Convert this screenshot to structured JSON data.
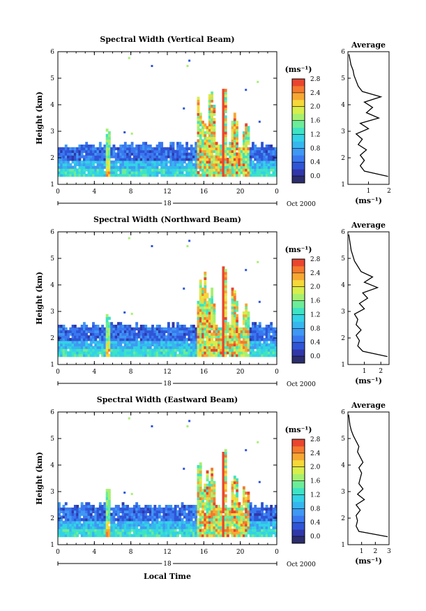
{
  "chart_data": [
    {
      "type": "heatmap",
      "title": "Spectral Width (Vertical Beam)",
      "ylabel": "Height (km)",
      "xlabel": "",
      "xlim": [
        0,
        24
      ],
      "ylim": [
        1,
        6
      ],
      "xticks": [
        "0",
        "4",
        "8",
        "12",
        "16",
        "20",
        "0"
      ],
      "yticks": [
        "1",
        "2",
        "3",
        "4",
        "5",
        "6"
      ],
      "day_label": "18",
      "month_label": "Oct 2000",
      "colorbar": {
        "unit": "(ms⁻¹)",
        "ticks": [
          "0.0",
          "0.4",
          "0.8",
          "1.2",
          "1.6",
          "2.0",
          "2.4",
          "2.8"
        ],
        "min": 0,
        "max": 3.0
      },
      "profile": {
        "title": "Average",
        "xlabel": "(ms⁻¹)",
        "xlim": [
          0,
          2
        ],
        "xticks": [
          "1",
          "2"
        ],
        "height_km": [
          1.3,
          1.5,
          1.7,
          1.9,
          2.1,
          2.3,
          2.5,
          2.7,
          2.9,
          3.1,
          3.3,
          3.5,
          3.7,
          3.9,
          4.1,
          4.3,
          4.5,
          4.7,
          4.9,
          5.1,
          5.3,
          5.5,
          5.7,
          5.9
        ],
        "width_ms": [
          1.95,
          0.8,
          0.6,
          0.8,
          0.6,
          0.9,
          0.5,
          0.7,
          0.4,
          1.0,
          0.6,
          1.5,
          0.9,
          1.2,
          0.8,
          1.6,
          0.7,
          0.5,
          0.4,
          0.3,
          0.25,
          0.15,
          0.1,
          0.05
        ]
      }
    },
    {
      "type": "heatmap",
      "title": "Spectral Width (Northward Beam)",
      "ylabel": "Height (km)",
      "xlabel": "",
      "xlim": [
        0,
        24
      ],
      "ylim": [
        1,
        6
      ],
      "xticks": [
        "0",
        "4",
        "8",
        "12",
        "16",
        "20",
        "0"
      ],
      "yticks": [
        "1",
        "2",
        "3",
        "4",
        "5",
        "6"
      ],
      "day_label": "18",
      "month_label": "Oct 2000",
      "colorbar": {
        "unit": "(ms⁻¹)",
        "ticks": [
          "0.0",
          "0.4",
          "0.8",
          "1.2",
          "1.6",
          "2.0",
          "2.4",
          "2.8"
        ],
        "min": 0,
        "max": 3.0
      },
      "profile": {
        "title": "Average",
        "xlabel": "(ms⁻¹)",
        "xlim": [
          0,
          2.5
        ],
        "xticks": [
          "1",
          "2"
        ],
        "height_km": [
          1.3,
          1.5,
          1.7,
          1.9,
          2.1,
          2.3,
          2.5,
          2.7,
          2.9,
          3.1,
          3.3,
          3.5,
          3.7,
          3.9,
          4.1,
          4.3,
          4.5,
          4.7,
          4.9,
          5.1,
          5.3,
          5.5,
          5.7,
          5.9
        ],
        "width_ms": [
          2.4,
          0.9,
          0.6,
          0.7,
          0.5,
          0.8,
          0.5,
          0.6,
          0.4,
          1.0,
          0.7,
          1.2,
          0.9,
          1.8,
          1.0,
          1.5,
          0.8,
          0.6,
          0.4,
          0.3,
          0.2,
          0.15,
          0.1,
          0.05
        ]
      }
    },
    {
      "type": "heatmap",
      "title": "Spectral Width (Eastward Beam)",
      "ylabel": "Height (km)",
      "xlabel": "Local Time",
      "xlim": [
        0,
        24
      ],
      "ylim": [
        1,
        6
      ],
      "xticks": [
        "0",
        "4",
        "8",
        "12",
        "16",
        "20",
        "0"
      ],
      "yticks": [
        "1",
        "2",
        "3",
        "4",
        "5",
        "6"
      ],
      "day_label": "18",
      "month_label": "Oct 2000",
      "colorbar": {
        "unit": "(ms⁻¹)",
        "ticks": [
          "0.0",
          "0.4",
          "0.8",
          "1.2",
          "1.6",
          "2.0",
          "2.4",
          "2.8"
        ],
        "min": 0,
        "max": 3.0
      },
      "profile": {
        "title": "Average",
        "xlabel": "(ms⁻¹)",
        "xlim": [
          0,
          3
        ],
        "xticks": [
          "1",
          "2",
          "3"
        ],
        "height_km": [
          1.3,
          1.5,
          1.7,
          1.9,
          2.1,
          2.3,
          2.5,
          2.7,
          2.9,
          3.1,
          3.3,
          3.5,
          3.7,
          3.9,
          4.1,
          4.3,
          4.5,
          4.7,
          4.9,
          5.1,
          5.3,
          5.5,
          5.7,
          5.9
        ],
        "width_ms": [
          2.9,
          0.8,
          0.6,
          0.7,
          0.6,
          0.9,
          0.6,
          1.2,
          0.7,
          1.1,
          0.8,
          0.9,
          1.0,
          0.8,
          1.1,
          0.9,
          0.7,
          0.8,
          0.6,
          0.4,
          0.25,
          0.15,
          0.1,
          0.05
        ]
      }
    }
  ]
}
